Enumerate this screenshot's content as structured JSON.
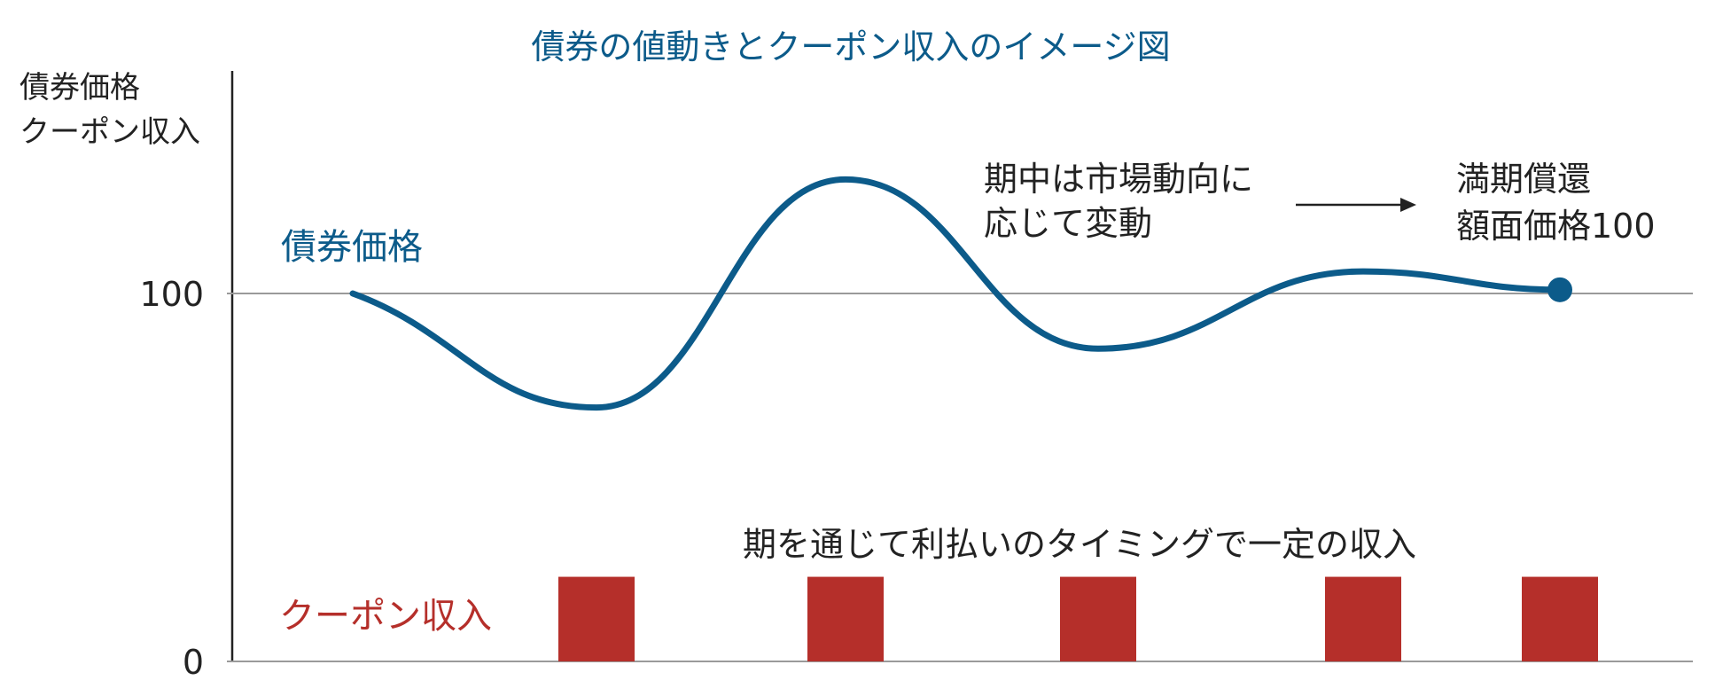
{
  "chart_data": {
    "type": "line",
    "title": "債券の値動きとクーポン収入のイメージ図",
    "ylabel_lines": [
      "債券価格",
      "クーポン収入"
    ],
    "yticks": [
      {
        "value": 0,
        "label": "0"
      },
      {
        "value": 100,
        "label": "100"
      }
    ],
    "ylim": [
      0,
      200
    ],
    "grid": false,
    "reference_line": 100,
    "x": [
      0,
      1,
      2,
      3,
      4,
      5
    ],
    "series": [
      {
        "name": "債券価格",
        "color": "#0c5b8a",
        "values": [
          100,
          69,
          131,
          85,
          106,
          101
        ],
        "marker_last": true
      },
      {
        "name": "クーポン収入",
        "type": "bar",
        "color": "#b52f2a",
        "x": [
          1,
          2,
          3,
          4,
          5
        ],
        "values": [
          23,
          23,
          23,
          23,
          23
        ]
      }
    ],
    "annotations": {
      "mid_term": [
        "期中は市場動向に",
        "応じて変動"
      ],
      "maturity": [
        "満期償還",
        "額面価格100"
      ],
      "coupon_note": "期を通じて利払いのタイミングで一定の収入"
    },
    "colors": {
      "axis": "#222222",
      "reference": "#9a9a9a",
      "text": "#222222"
    }
  }
}
